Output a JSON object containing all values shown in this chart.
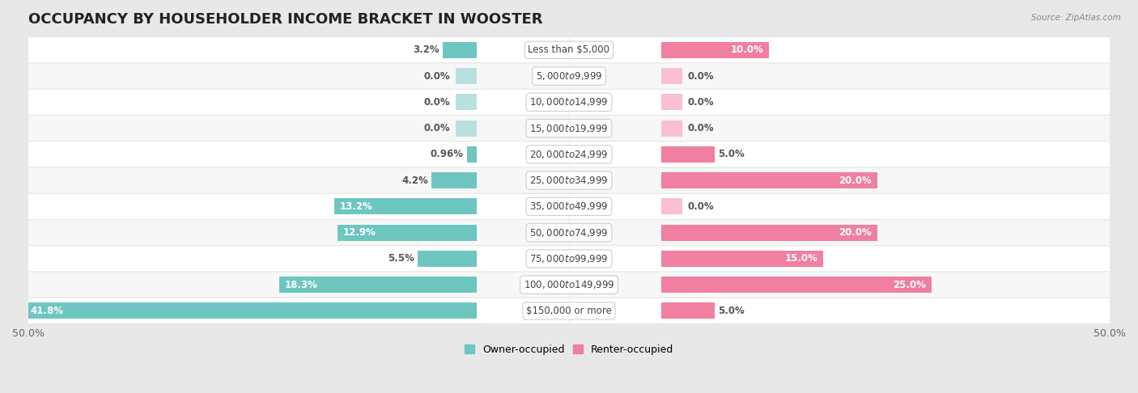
{
  "title": "OCCUPANCY BY HOUSEHOLDER INCOME BRACKET IN WOOSTER",
  "source": "Source: ZipAtlas.com",
  "categories": [
    "Less than $5,000",
    "$5,000 to $9,999",
    "$10,000 to $14,999",
    "$15,000 to $19,999",
    "$20,000 to $24,999",
    "$25,000 to $34,999",
    "$35,000 to $49,999",
    "$50,000 to $74,999",
    "$75,000 to $99,999",
    "$100,000 to $149,999",
    "$150,000 or more"
  ],
  "owner_values": [
    3.2,
    0.0,
    0.0,
    0.0,
    0.96,
    4.2,
    13.2,
    12.9,
    5.5,
    18.3,
    41.8
  ],
  "renter_values": [
    10.0,
    0.0,
    0.0,
    0.0,
    5.0,
    20.0,
    0.0,
    20.0,
    15.0,
    25.0,
    5.0
  ],
  "owner_color": "#6EC6C1",
  "renter_color": "#F07FA0",
  "owner_color_zero": "#B8E0DE",
  "renter_color_zero": "#F8C0D0",
  "bar_height": 0.62,
  "xlim_left": -50,
  "xlim_right": 50,
  "bg_color": "#e8e8e8",
  "row_bg_light": "#f7f7f7",
  "row_bg_white": "#ffffff",
  "title_fontsize": 13,
  "label_fontsize": 8.5,
  "value_fontsize": 8.5,
  "tick_fontsize": 9,
  "legend_fontsize": 9,
  "owner_label": "Owner-occupied",
  "renter_label": "Renter-occupied"
}
